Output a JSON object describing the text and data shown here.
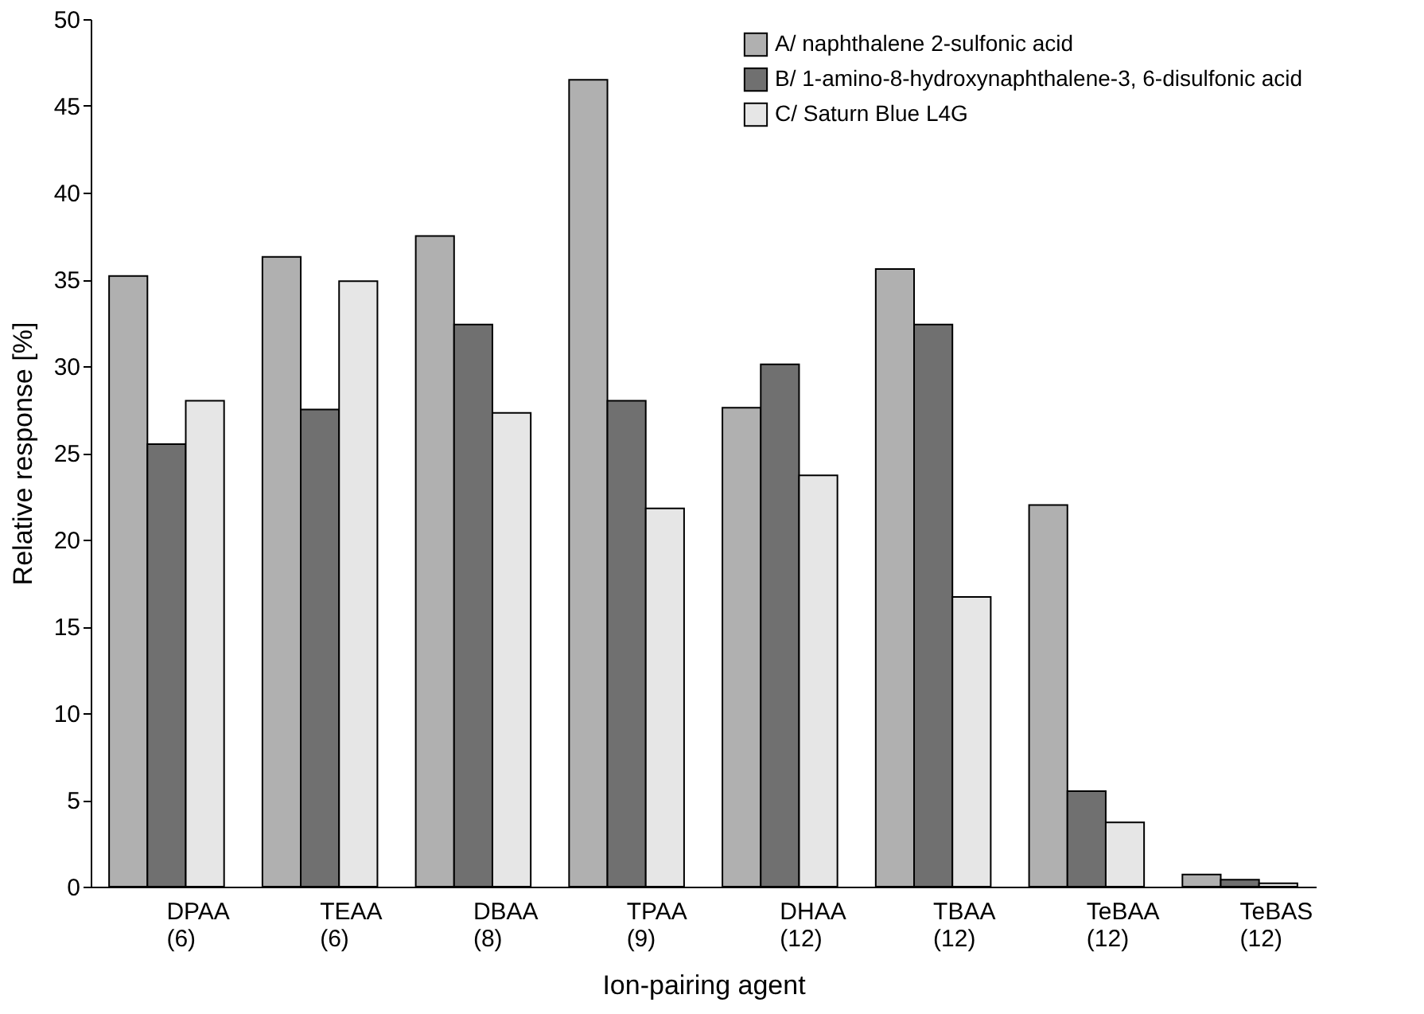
{
  "chart_data": {
    "type": "bar",
    "xlabel": "Ion-pairing agent",
    "ylabel": "Relative response [%]",
    "categories": [
      "DPAA\n(6)",
      "TEAA\n(6)",
      "DBAA\n(8)",
      "TPAA\n(9)",
      "DHAA\n(12)",
      "TBAA\n(12)",
      "TeBAA\n(12)",
      "TeBAS\n(12)"
    ],
    "series": [
      {
        "name": "A/ naphthalene 2-sulfonic acid",
        "color": "#b0b0b0",
        "values": [
          35.2,
          36.3,
          37.5,
          46.5,
          27.6,
          35.6,
          22.0,
          0.7
        ]
      },
      {
        "name": "B/ 1-amino-8-hydroxynaphthalene-3, 6-disulfonic acid",
        "color": "#707070",
        "values": [
          25.5,
          27.5,
          32.4,
          28.0,
          30.1,
          32.4,
          5.5,
          0.4
        ]
      },
      {
        "name": "C/ Saturn Blue L4G",
        "color": "#e6e6e6",
        "values": [
          28.0,
          34.9,
          27.3,
          21.8,
          23.7,
          16.7,
          3.7,
          0.2
        ]
      }
    ],
    "ylim": [
      0,
      50
    ],
    "yticks": [
      0,
      5,
      10,
      15,
      20,
      25,
      30,
      35,
      40,
      45,
      50
    ],
    "grid": false,
    "legend": "top right"
  }
}
